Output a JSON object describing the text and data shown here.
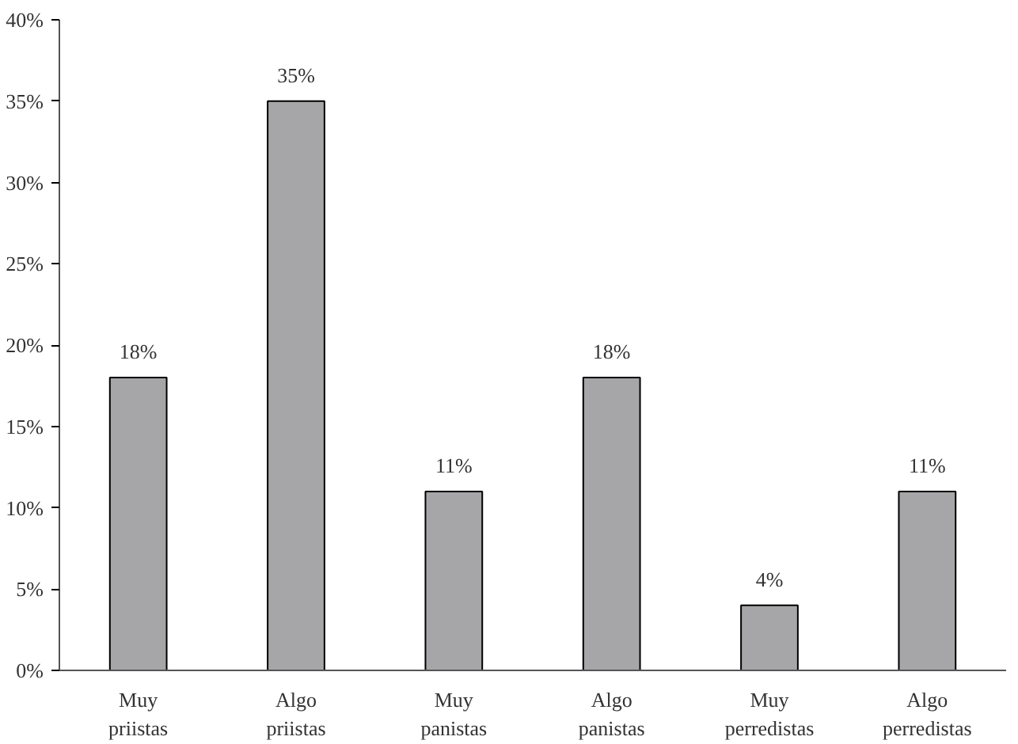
{
  "chart_data": {
    "type": "bar",
    "categories": [
      "Muy\npriistas",
      "Algo\npriistas",
      "Muy\npanistas",
      "Algo\npanistas",
      "Muy\nperredistas",
      "Algo\nperredistas"
    ],
    "values": [
      18,
      35,
      11,
      18,
      4,
      11
    ],
    "value_labels": [
      "18%",
      "35%",
      "11%",
      "18%",
      "4%",
      "11%"
    ],
    "color": "#a6a6a8",
    "ylim": [
      0,
      40
    ],
    "yticks": [
      {
        "value": 0,
        "label": "0%"
      },
      {
        "value": 5,
        "label": "5%"
      },
      {
        "value": 10,
        "label": "10%"
      },
      {
        "value": 15,
        "label": "15%"
      },
      {
        "value": 20,
        "label": "20%"
      },
      {
        "value": 25,
        "label": "25%"
      },
      {
        "value": 30,
        "label": "30%"
      },
      {
        "value": 35,
        "label": "35%"
      },
      {
        "value": 40,
        "label": "40%"
      }
    ],
    "grid": false
  }
}
